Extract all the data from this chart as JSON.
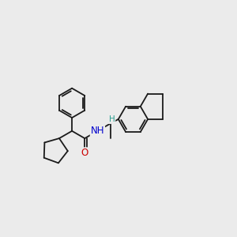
{
  "background_color": "#ebebeb",
  "line_color": "#1a1a1a",
  "bond_width": 1.3,
  "atom_colors": {
    "N": "#0000cd",
    "O": "#cc0000",
    "H_n": "#2a9d8f",
    "H_c": "#2a9d8f"
  },
  "font_size_atom": 8.5,
  "font_size_H": 7.5
}
